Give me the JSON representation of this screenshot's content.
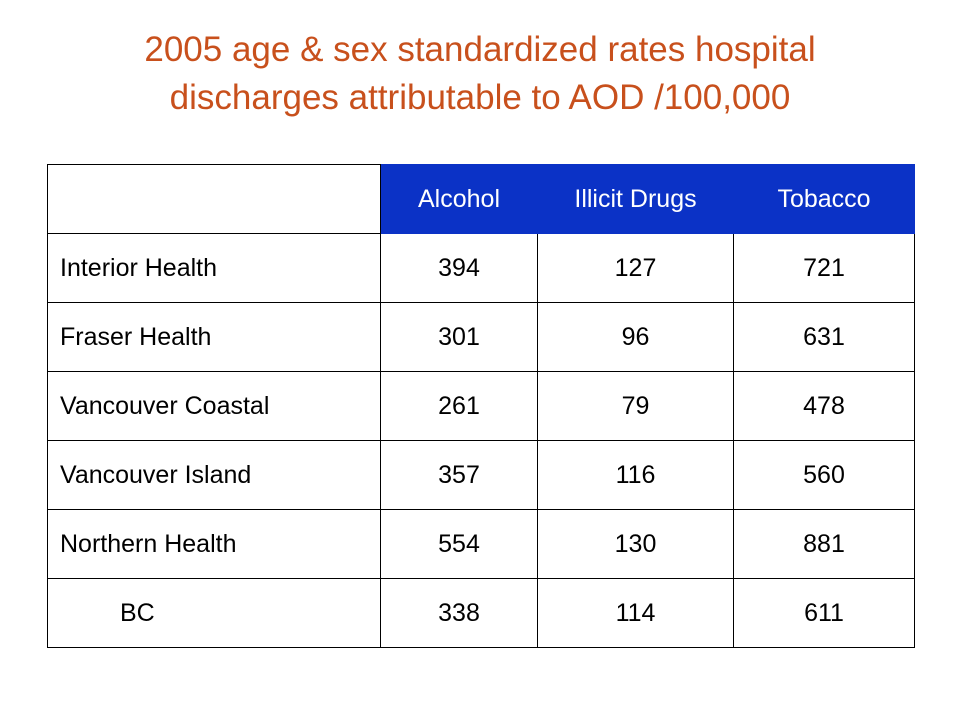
{
  "title": {
    "line1": "2005 age & sex standardized rates hospital",
    "line2": "discharges attributable to AOD /100,000"
  },
  "table": {
    "columns": [
      "Alcohol",
      "Illicit Drugs",
      "Tobacco"
    ],
    "rows": [
      {
        "region": "Interior Health",
        "alcohol": "394",
        "illicit_drugs": "127",
        "tobacco": "721"
      },
      {
        "region": "Fraser Health",
        "alcohol": "301",
        "illicit_drugs": "96",
        "tobacco": "631"
      },
      {
        "region": "Vancouver Coastal",
        "alcohol": "261",
        "illicit_drugs": "79",
        "tobacco": "478"
      },
      {
        "region": "Vancouver Island",
        "alcohol": "357",
        "illicit_drugs": "116",
        "tobacco": "560"
      },
      {
        "region": "Northern Health",
        "alcohol": "554",
        "illicit_drugs": "130",
        "tobacco": "881"
      }
    ],
    "total": {
      "region": "BC",
      "alcohol": "338",
      "illicit_drugs": "114",
      "tobacco": "611"
    }
  },
  "colors": {
    "title": "#c8501c",
    "header_background": "#0b32c6",
    "header_text": "#ffffff",
    "body_text": "#000000"
  }
}
